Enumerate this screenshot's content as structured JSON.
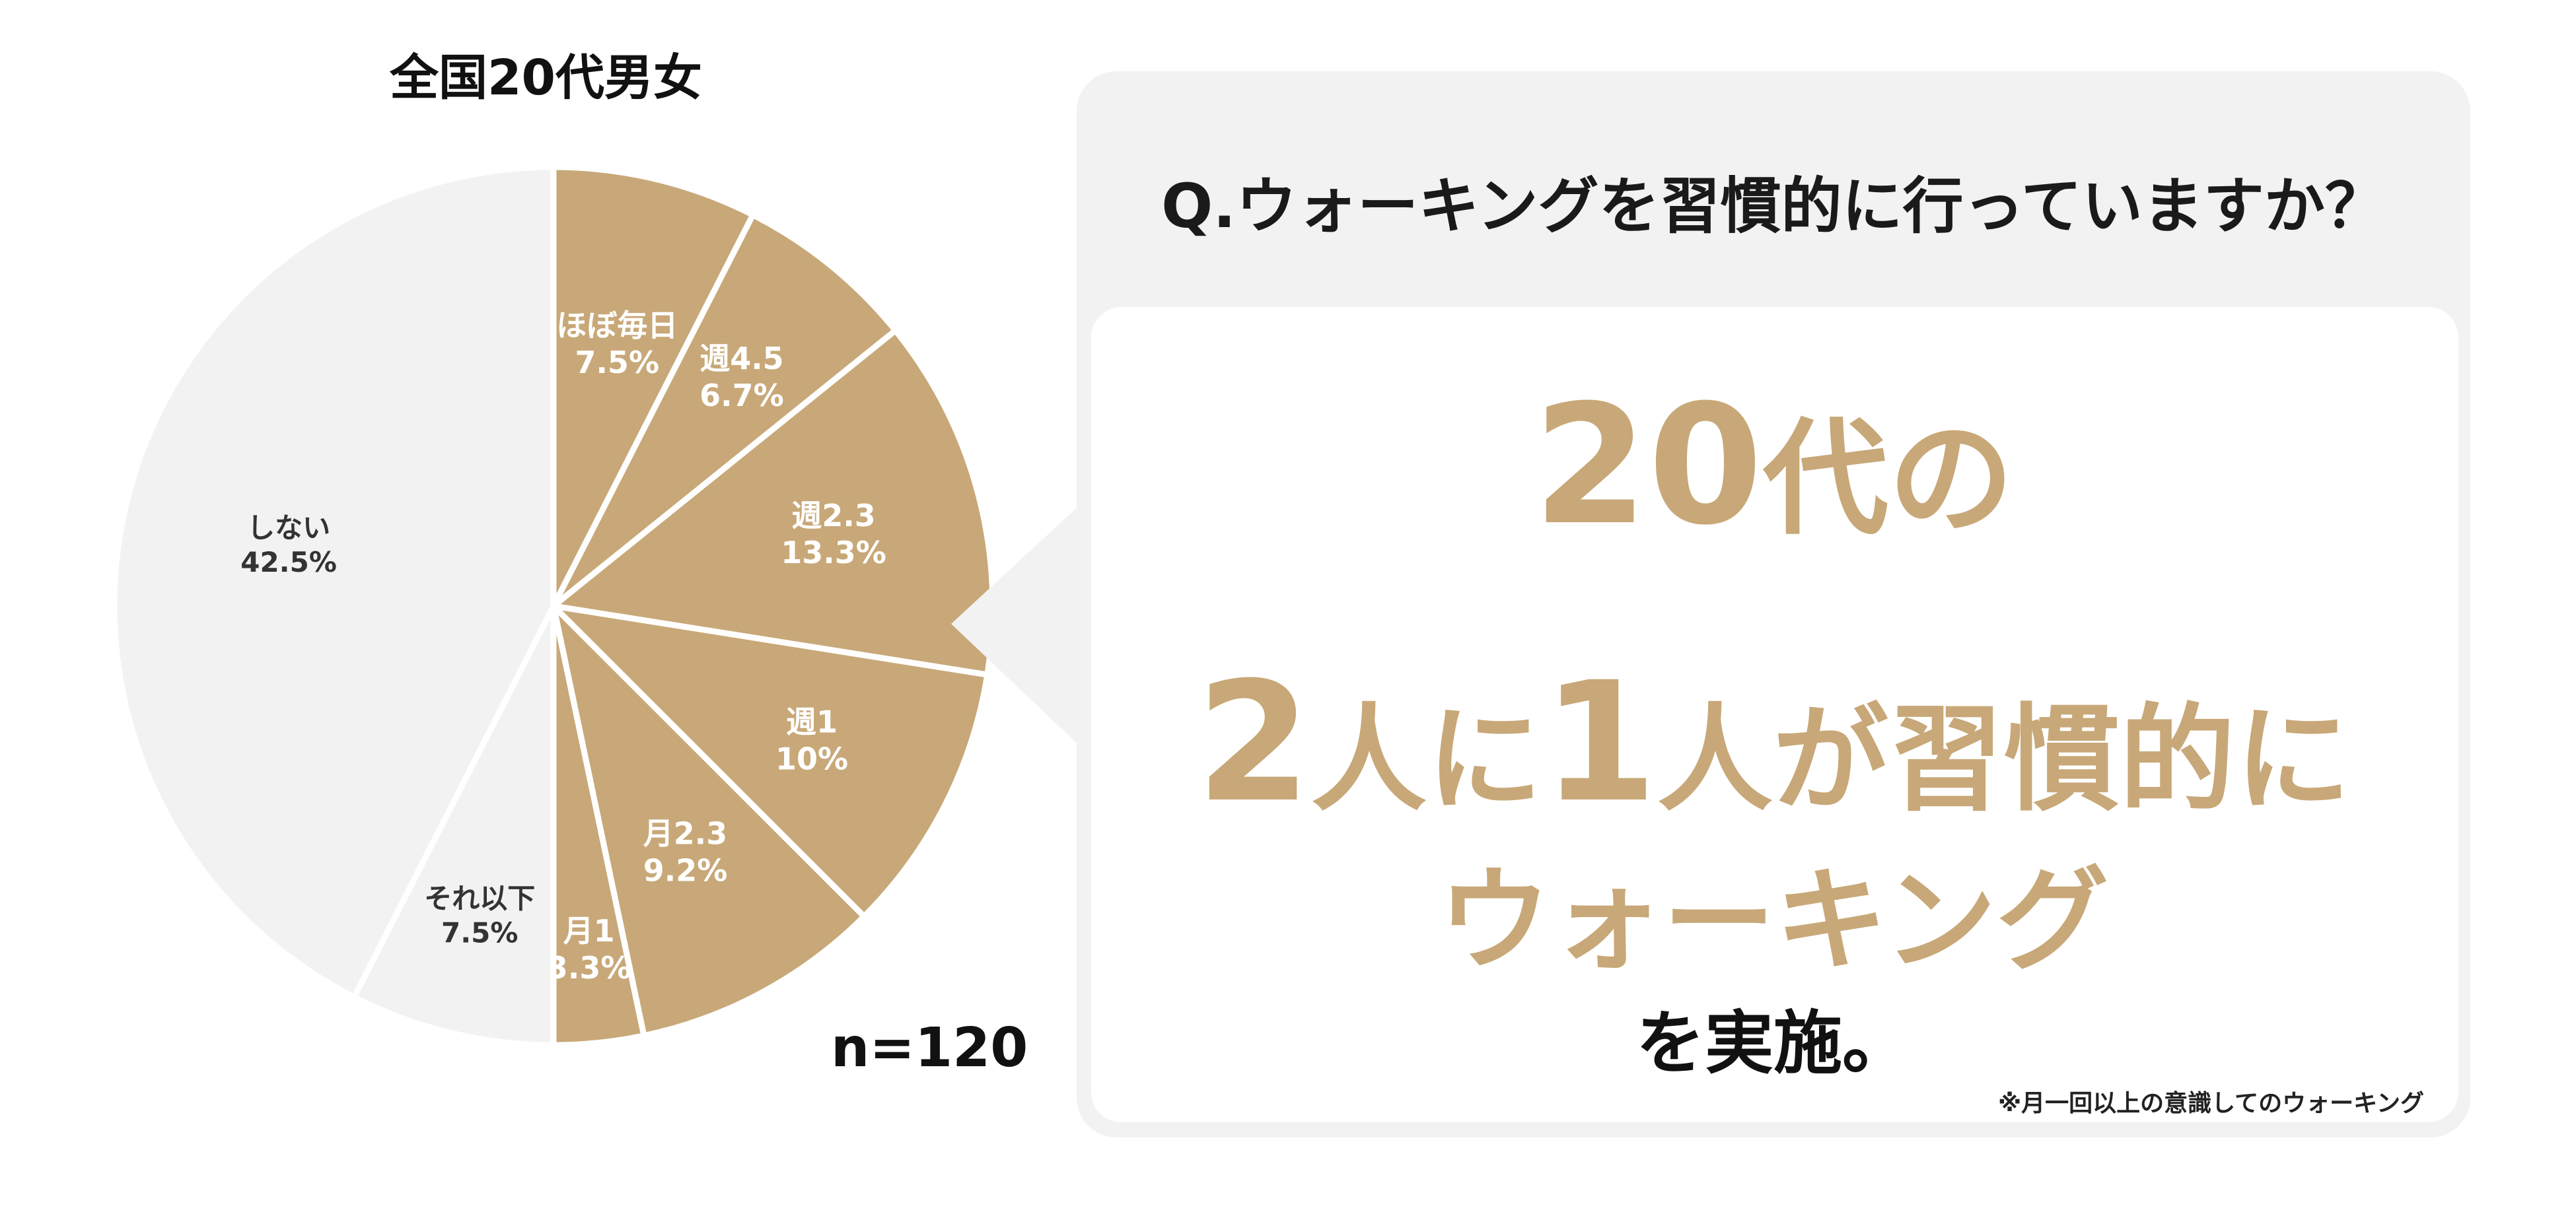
{
  "chart_data": {
    "type": "pie",
    "title": "全国20代男女",
    "note": "n=120",
    "slices": [
      {
        "label": "ほぼ毎日",
        "percent_text": "7.5%",
        "value": 7.5,
        "color": "#c8a878",
        "label_color": "#ffffff"
      },
      {
        "label": "週4.5",
        "percent_text": "6.7%",
        "value": 6.7,
        "color": "#c8a878",
        "label_color": "#ffffff"
      },
      {
        "label": "週2.3",
        "percent_text": "13.3%",
        "value": 13.3,
        "color": "#c8a878",
        "label_color": "#ffffff"
      },
      {
        "label": "週1",
        "percent_text": "10%",
        "value": 10,
        "color": "#c8a878",
        "label_color": "#ffffff"
      },
      {
        "label": "月2.3",
        "percent_text": "9.2%",
        "value": 9.2,
        "color": "#c8a878",
        "label_color": "#ffffff"
      },
      {
        "label": "月1",
        "percent_text": "3.3%",
        "value": 3.3,
        "color": "#c8a878",
        "label_color": "#ffffff"
      },
      {
        "label": "それ以下",
        "percent_text": "7.5%",
        "value": 7.5,
        "color": "#f2f2f2",
        "label_color": "#333333"
      },
      {
        "label": "しない",
        "percent_text": "42.5%",
        "value": 42.5,
        "color": "#f2f2f2",
        "label_color": "#333333"
      }
    ]
  },
  "panel": {
    "question": "Q.ウォーキングを習慣的に行っていますか？",
    "line1_num": "20",
    "line1_text": "代の",
    "line2_a": "2",
    "line2_b": "人に",
    "line2_c": "1",
    "line2_d": "人が習慣的に",
    "line3": "ウォーキング",
    "line4": "を実施。",
    "footnote": "※月一回以上の意識してのウォーキング"
  },
  "colors": {
    "accent": "#c8a878",
    "light_gray": "#f2f2f2",
    "text": "#111111"
  }
}
